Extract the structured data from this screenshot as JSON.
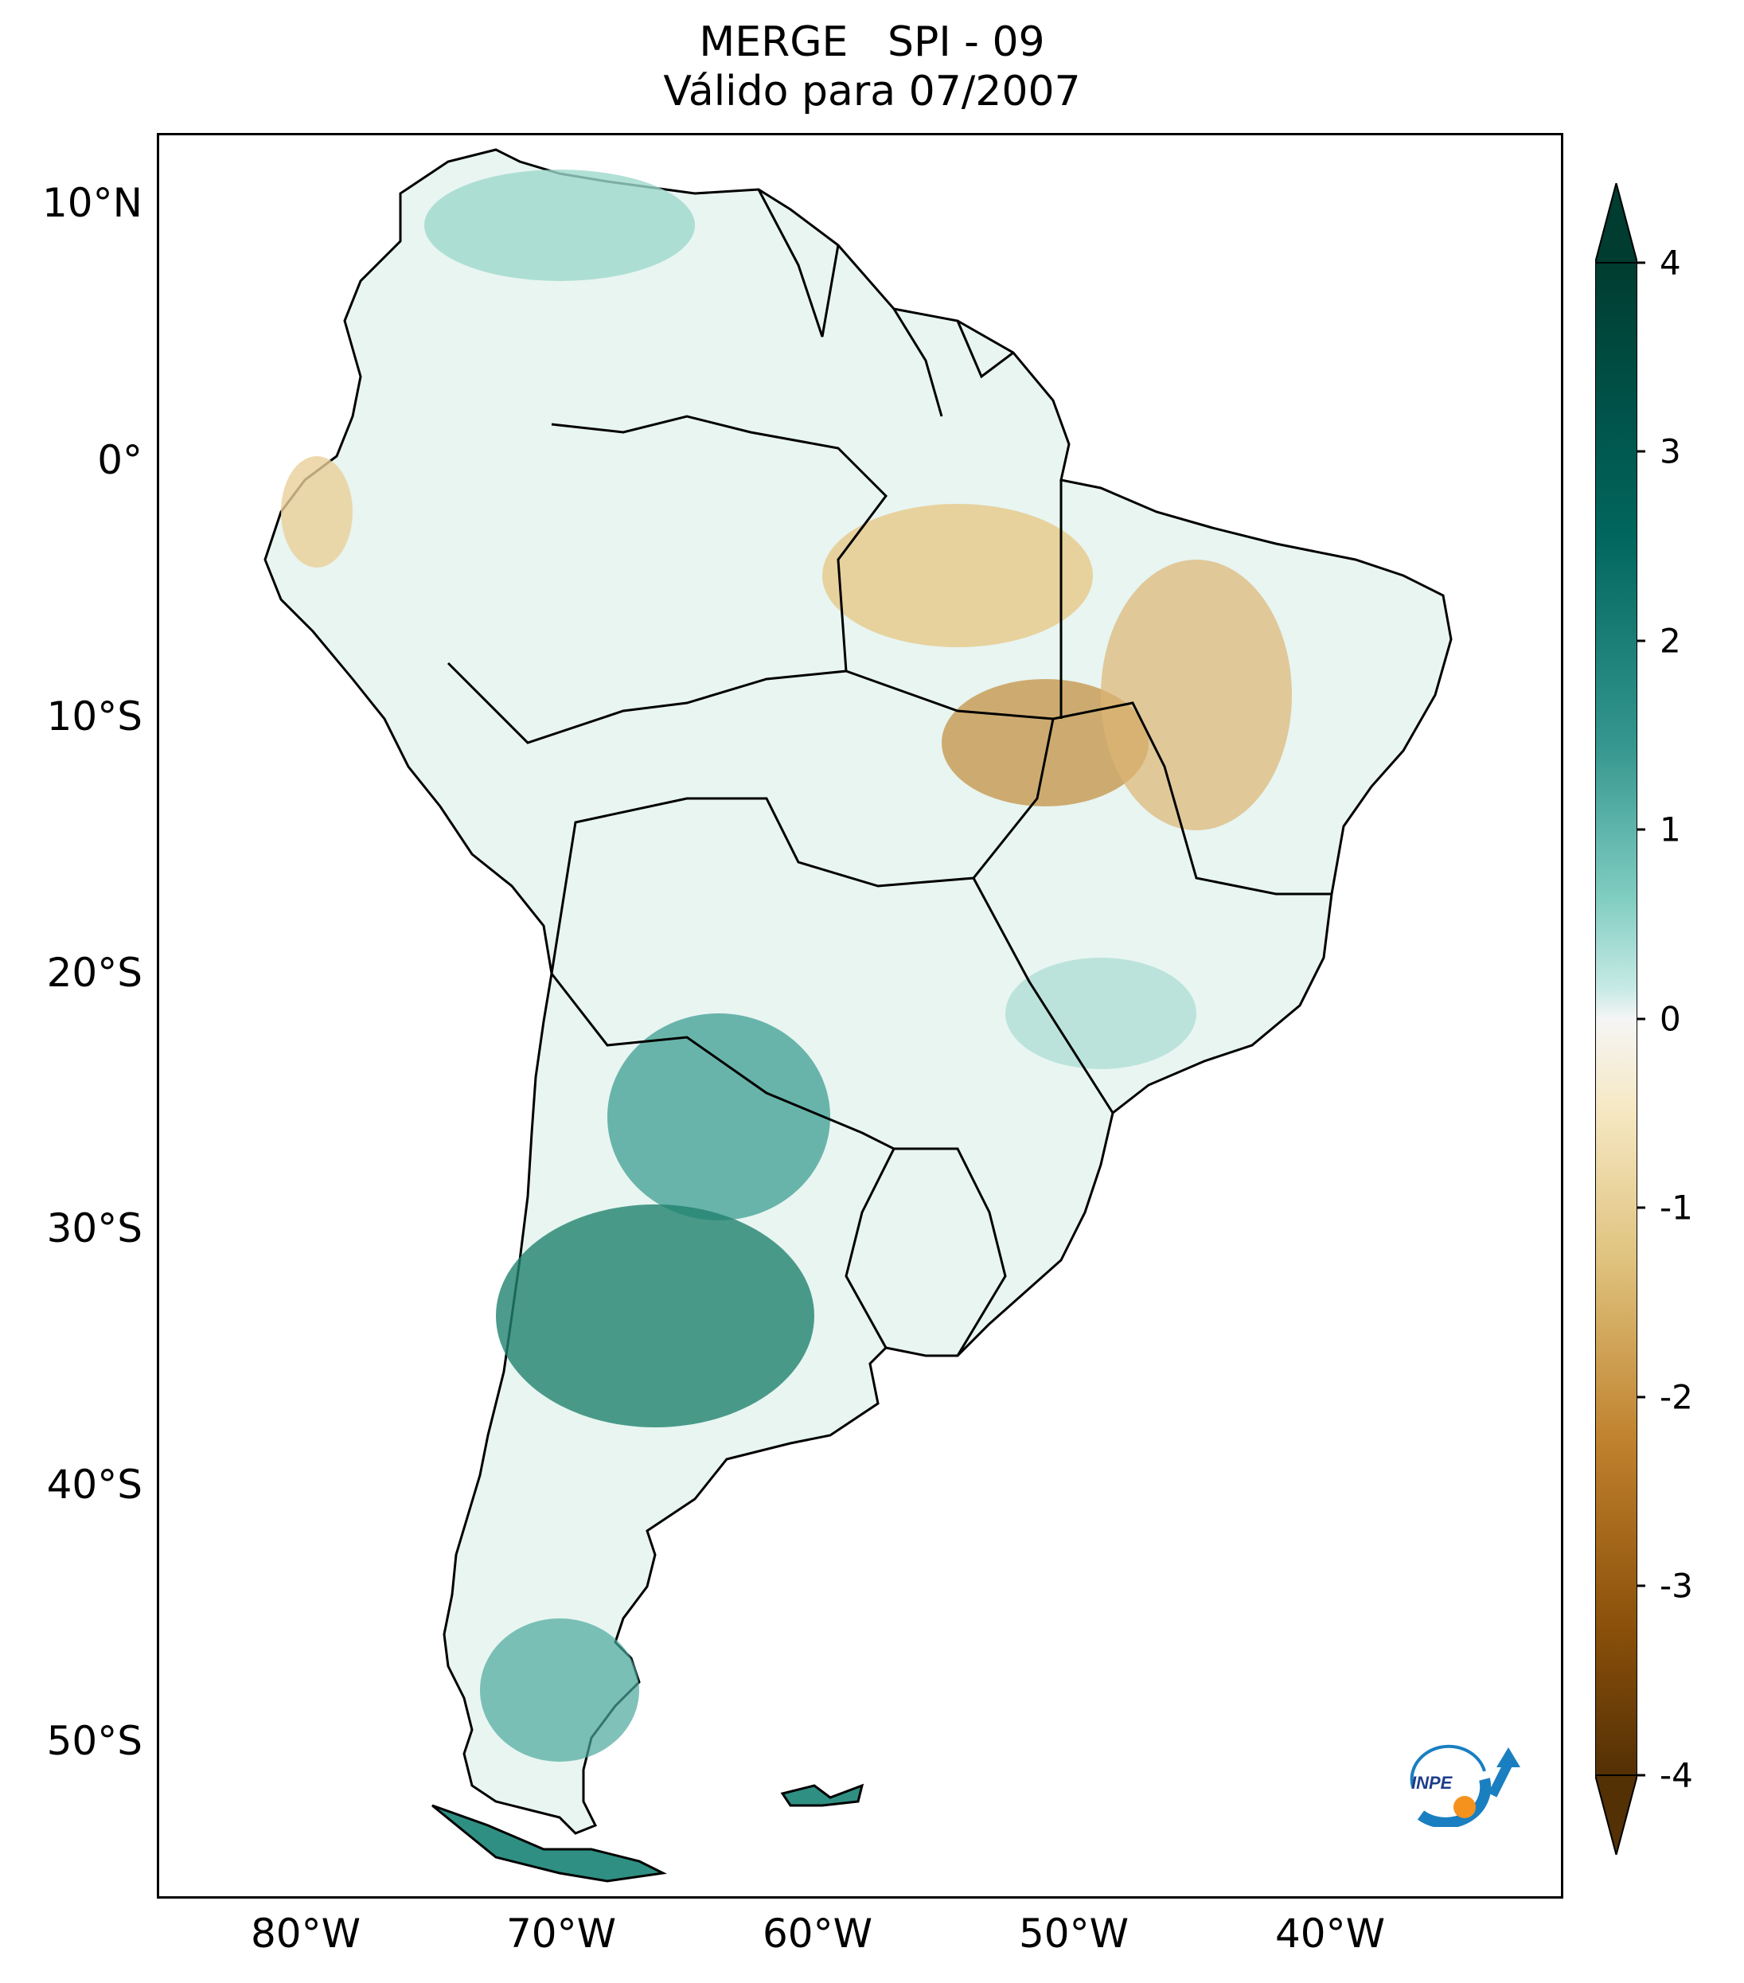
{
  "title": {
    "line1": "MERGE   SPI - 09",
    "line2": "Válido para 07/2007"
  },
  "axes": {
    "lat_labels": [
      "10°N",
      "0°",
      "10°S",
      "20°S",
      "30°S",
      "40°S",
      "50°S"
    ],
    "lon_labels": [
      "80°W",
      "70°W",
      "60°W",
      "50°W",
      "40°W"
    ]
  },
  "colorbar": {
    "ticks": [
      "4",
      "3",
      "2",
      "1",
      "0",
      "-1",
      "-2",
      "-3",
      "-4"
    ],
    "range": [
      -4,
      4
    ],
    "colors": {
      "max": "#003c30",
      "high": "#35978f",
      "mid_high": "#c7eae5",
      "zero": "#f5f5f5",
      "mid_low": "#f6e8c3",
      "low": "#bf812d",
      "min": "#543005"
    }
  },
  "logo": {
    "text": "INPE"
  }
}
